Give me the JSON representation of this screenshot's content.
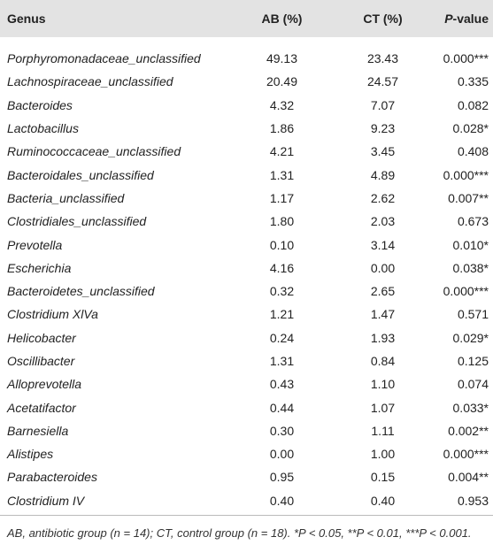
{
  "table": {
    "header": [
      "Genus",
      "AB (%)",
      "CT (%)",
      "P-value"
    ],
    "rows": [
      [
        "Porphyromonadaceae_unclassified",
        "49.13",
        "23.43",
        "0.000***"
      ],
      [
        "Lachnospiraceae_unclassified",
        "20.49",
        "24.57",
        "0.335"
      ],
      [
        "Bacteroides",
        "4.32",
        "7.07",
        "0.082"
      ],
      [
        "Lactobacillus",
        "1.86",
        "9.23",
        "0.028*"
      ],
      [
        "Ruminococcaceae_unclassified",
        "4.21",
        "3.45",
        "0.408"
      ],
      [
        "Bacteroidales_unclassified",
        "1.31",
        "4.89",
        "0.000***"
      ],
      [
        "Bacteria_unclassified",
        "1.17",
        "2.62",
        "0.007**"
      ],
      [
        "Clostridiales_unclassified",
        "1.80",
        "2.03",
        "0.673"
      ],
      [
        "Prevotella",
        "0.10",
        "3.14",
        "0.010*"
      ],
      [
        "Escherichia",
        "4.16",
        "0.00",
        "0.038*"
      ],
      [
        "Bacteroidetes_unclassified",
        "0.32",
        "2.65",
        "0.000***"
      ],
      [
        "Clostridium XlVa",
        "1.21",
        "1.47",
        "0.571"
      ],
      [
        "Helicobacter",
        "0.24",
        "1.93",
        "0.029*"
      ],
      [
        "Oscillibacter",
        "1.31",
        "0.84",
        "0.125"
      ],
      [
        "Alloprevotella",
        "0.43",
        "1.10",
        "0.074"
      ],
      [
        "Acetatifactor",
        "0.44",
        "1.07",
        "0.033*"
      ],
      [
        "Barnesiella",
        "0.30",
        "1.11",
        "0.002**"
      ],
      [
        "Alistipes",
        "0.00",
        "1.00",
        "0.000***"
      ],
      [
        "Parabacteroides",
        "0.95",
        "0.15",
        "0.004**"
      ],
      [
        "Clostridium IV",
        "0.40",
        "0.40",
        "0.953"
      ]
    ],
    "footnote": "AB, antibiotic group (n = 14); CT, control group (n = 18). *P < 0.05, **P < 0.01, ***P < 0.001."
  }
}
